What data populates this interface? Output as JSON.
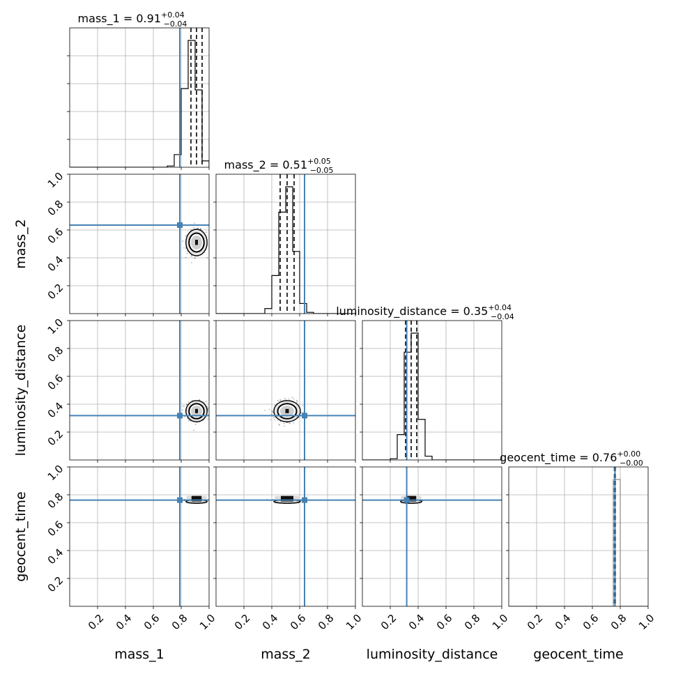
{
  "chart_data": {
    "type": "corner",
    "parameters": [
      "mass_1",
      "mass_2",
      "luminosity_distance",
      "geocent_time"
    ],
    "axis_labels": [
      "mass_1",
      "mass_2",
      "luminosity_distance",
      "geocent_time"
    ],
    "range": [
      0,
      1
    ],
    "tick_labels": [
      "0.2",
      "0.4",
      "0.6",
      "0.8",
      "1.0"
    ],
    "grid": true,
    "truth_color": "#4682b4",
    "truths": [
      0.79,
      0.635,
      0.318,
      0.762
    ],
    "titles": [
      {
        "label": "mass_1 = 0.91",
        "plus": "+0.04",
        "minus": "−0.04"
      },
      {
        "label": "mass_2 = 0.51",
        "plus": "+0.05",
        "minus": "−0.05"
      },
      {
        "label": "luminosity_distance = 0.35",
        "plus": "+0.04",
        "minus": "−0.04"
      },
      {
        "label": "geocent_time = 0.76",
        "plus": "+0.00",
        "minus": "−0.00"
      }
    ],
    "quantiles": [
      [
        0.87,
        0.91,
        0.95
      ],
      [
        0.46,
        0.51,
        0.56
      ],
      [
        0.31,
        0.35,
        0.39
      ],
      [
        0.758,
        0.762,
        0.765
      ]
    ],
    "histograms": [
      {
        "edges": [
          0.7,
          0.75,
          0.8,
          0.85,
          0.9,
          0.95,
          1.0
        ],
        "counts": [
          0.01,
          0.1,
          0.62,
          1.0,
          0.61,
          0.05
        ]
      },
      {
        "edges": [
          0.35,
          0.4,
          0.45,
          0.5,
          0.55,
          0.6,
          0.65,
          0.7
        ],
        "counts": [
          0.04,
          0.3,
          0.8,
          1.0,
          0.49,
          0.08,
          0.01
        ]
      },
      {
        "edges": [
          0.2,
          0.25,
          0.3,
          0.35,
          0.4,
          0.45,
          0.5,
          0.55
        ],
        "counts": [
          0.01,
          0.2,
          0.85,
          1.0,
          0.32,
          0.03,
          0.0
        ]
      },
      {
        "edges": [
          0.7,
          0.75,
          0.8,
          0.85
        ],
        "counts": [
          0.0,
          1.0,
          0.0
        ]
      }
    ],
    "posterior_means": [
      0.91,
      0.51,
      0.35,
      0.762
    ],
    "posterior_widths": [
      0.04,
      0.05,
      0.04,
      0.004
    ]
  }
}
